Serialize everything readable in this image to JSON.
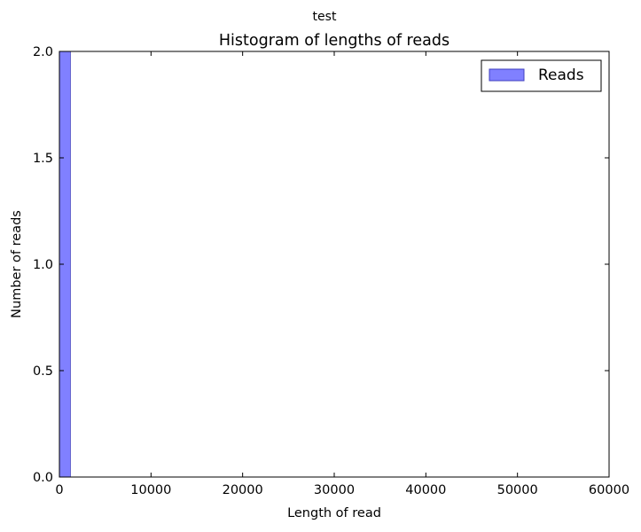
{
  "chart_data": {
    "type": "bar",
    "suptitle": "test",
    "title": "Histogram of lengths of reads",
    "xlabel": "Length of read",
    "ylabel": "Number of reads",
    "xlim": [
      0,
      60000
    ],
    "ylim": [
      0,
      2.0
    ],
    "xticks": [
      "0",
      "10000",
      "20000",
      "30000",
      "40000",
      "50000",
      "60000"
    ],
    "yticks": [
      "0.0",
      "0.5",
      "1.0",
      "1.5",
      "2.0"
    ],
    "grid": false,
    "legend": {
      "position": "top-right",
      "entries": [
        "Reads"
      ]
    },
    "series": [
      {
        "name": "Reads",
        "color": "#8080ff",
        "bins": [
          {
            "x0": 0,
            "x1": 1200,
            "count": 2
          }
        ]
      }
    ]
  }
}
